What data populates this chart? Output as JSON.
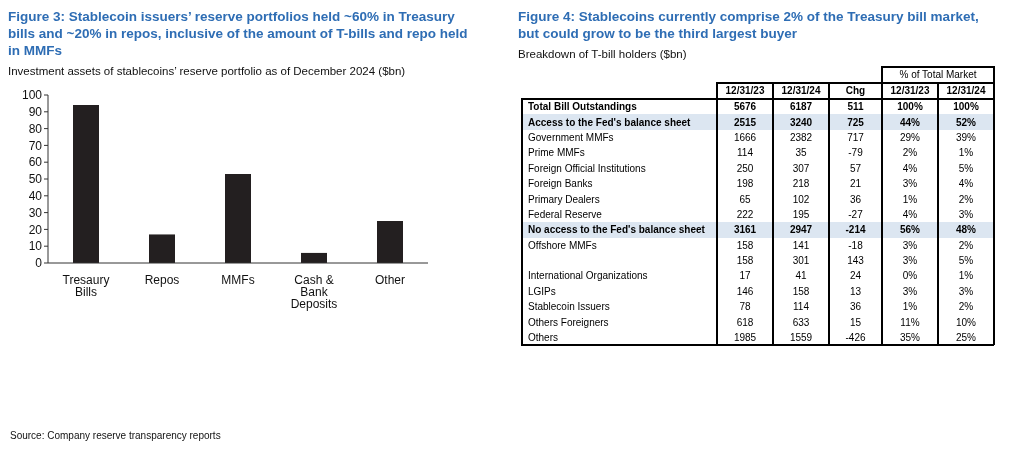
{
  "chart_data": [
    {
      "type": "bar",
      "title": "Figure 3: Stablecoin issuers’ reserve portfolios held ~60% in Treasury bills and ~20% in repos, inclusive of the amount of T-bills and repo held in MMFs",
      "subtitle": "Investment assets of stablecoins’ reserve portfolio as of December 2024 ($bn)",
      "categories": [
        "Tresaury Bills",
        "Repos",
        "MMFs",
        "Cash & Bank Deposits",
        "Other"
      ],
      "values": [
        94,
        17,
        53,
        6,
        25
      ],
      "color": "#231f20",
      "ylim": [
        0,
        100
      ],
      "yticks": [
        0,
        10,
        20,
        30,
        40,
        50,
        60,
        70,
        80,
        90,
        100
      ],
      "grid": false,
      "legend": false,
      "annotations": [
        "Source: Company reserve transparency reports"
      ]
    },
    {
      "type": "heatmap",
      "title": "Figure 4: Stablecoins currently comprise 2% of the Treasury bill market, but could grow to be the third largest buyer",
      "subtitle": "Breakdown of T-bill holders ($bn)",
      "annotations": [
        "% of Total Market"
      ],
      "categories": [
        "12/31/23",
        "12/31/24",
        "Chg",
        "12/31/23",
        "12/31/24"
      ],
      "y_categories": [
        "Total Bill Outstandings",
        "Access to the Fed's balance sheet",
        "Government MMFs",
        "Prime MMFs",
        "Foreign Official Institutions",
        "Foreign Banks",
        "Primary Dealers",
        "Federal Reserve",
        "No access to the Fed's balance sheet",
        "Offshore MMFs",
        null,
        "International Organizations",
        "LGIPs",
        "Stablecoin Issuers",
        "Others Foreigners",
        "Others"
      ],
      "cells": [
        [
          5676,
          6187,
          511,
          100,
          100
        ],
        [
          2515,
          3240,
          725,
          44,
          52
        ],
        [
          1666,
          2382,
          717,
          29,
          39
        ],
        [
          114,
          35,
          -79,
          2,
          1
        ],
        [
          250,
          307,
          57,
          4,
          5
        ],
        [
          198,
          218,
          21,
          3,
          4
        ],
        [
          65,
          102,
          36,
          1,
          2
        ],
        [
          222,
          195,
          -27,
          4,
          3
        ],
        [
          3161,
          2947,
          -214,
          56,
          48
        ],
        [
          158,
          141,
          -18,
          3,
          2
        ],
        [
          158,
          301,
          143,
          3,
          5
        ],
        [
          17,
          41,
          24,
          0,
          1
        ],
        [
          146,
          158,
          13,
          3,
          3
        ],
        [
          78,
          114,
          36,
          1,
          2
        ],
        [
          618,
          633,
          15,
          11,
          10
        ],
        [
          1985,
          1559,
          -426,
          35,
          25
        ]
      ],
      "cell_labels": [
        [
          "5676",
          "6187",
          "511",
          "100%",
          "100%"
        ],
        [
          "2515",
          "3240",
          "725",
          "44%",
          "52%"
        ],
        [
          "1666",
          "2382",
          "717",
          "29%",
          "39%"
        ],
        [
          "114",
          "35",
          "-79",
          "2%",
          "1%"
        ],
        [
          "250",
          "307",
          "57",
          "4%",
          "5%"
        ],
        [
          "198",
          "218",
          "21",
          "3%",
          "4%"
        ],
        [
          "65",
          "102",
          "36",
          "1%",
          "2%"
        ],
        [
          "222",
          "195",
          "-27",
          "4%",
          "3%"
        ],
        [
          "3161",
          "2947",
          "-214",
          "56%",
          "48%"
        ],
        [
          "158",
          "141",
          "-18",
          "3%",
          "2%"
        ],
        [
          "158",
          "301",
          "143",
          "3%",
          "5%"
        ],
        [
          "17",
          "41",
          "24",
          "0%",
          "1%"
        ],
        [
          "146",
          "158",
          "13",
          "3%",
          "3%"
        ],
        [
          "78",
          "114",
          "36",
          "1%",
          "2%"
        ],
        [
          "618",
          "633",
          "15",
          "11%",
          "10%"
        ],
        [
          "1985",
          "1559",
          "-426",
          "35%",
          "25%"
        ]
      ]
    }
  ]
}
